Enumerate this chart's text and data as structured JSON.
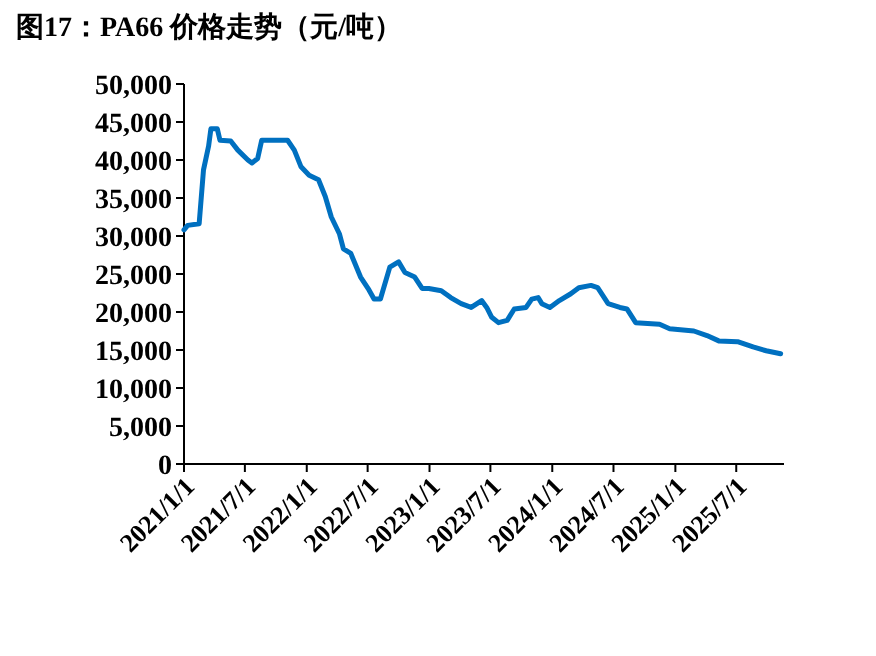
{
  "chart_data": {
    "type": "line",
    "title": "图17：PA66 价格走势（元/吨）",
    "series": [
      {
        "color": "#0070c0",
        "x": [
          "2021-01-01",
          "2021-01-12",
          "2021-02-15",
          "2021-02-28",
          "2021-03-15",
          "2021-03-22",
          "2021-04-10",
          "2021-04-18",
          "2021-05-20",
          "2021-06-10",
          "2021-07-10",
          "2021-07-22",
          "2021-08-08",
          "2021-08-20",
          "2021-11-05",
          "2021-11-25",
          "2021-12-15",
          "2022-01-08",
          "2022-02-05",
          "2022-02-25",
          "2022-03-15",
          "2022-04-08",
          "2022-04-20",
          "2022-05-12",
          "2022-06-10",
          "2022-07-05",
          "2022-07-20",
          "2022-08-08",
          "2022-09-05",
          "2022-10-01",
          "2022-10-20",
          "2022-11-18",
          "2022-12-10",
          "2022-12-30",
          "2023-02-05",
          "2023-03-05",
          "2023-04-05",
          "2023-05-05",
          "2023-06-05",
          "2023-06-20",
          "2023-07-05",
          "2023-07-25",
          "2023-08-20",
          "2023-09-10",
          "2023-10-15",
          "2023-11-01",
          "2023-11-20",
          "2023-12-01",
          "2023-12-25",
          "2024-01-22",
          "2024-02-25",
          "2024-03-20",
          "2024-04-25",
          "2024-05-15",
          "2024-06-15",
          "2024-07-20",
          "2024-08-10",
          "2024-09-05",
          "2024-11-15",
          "2024-12-15",
          "2025-02-25",
          "2025-04-05",
          "2025-05-10",
          "2025-07-05",
          "2025-08-20",
          "2025-09-28",
          "2025-11-10"
        ],
        "values": [
          30800,
          31400,
          31600,
          38700,
          41800,
          44100,
          44100,
          42600,
          42500,
          41300,
          40000,
          39600,
          40200,
          42600,
          42600,
          41300,
          39100,
          38000,
          37400,
          35200,
          32500,
          30300,
          28300,
          27700,
          24600,
          22900,
          21700,
          21700,
          25900,
          26600,
          25200,
          24600,
          23100,
          23100,
          22800,
          21900,
          21100,
          20600,
          21500,
          20600,
          19300,
          18600,
          18900,
          20400,
          20600,
          21700,
          21900,
          21100,
          20600,
          21500,
          22400,
          23200,
          23500,
          23200,
          21100,
          20600,
          20400,
          18600,
          18400,
          17800,
          17500,
          16900,
          16200,
          16100,
          15400,
          14900,
          14500
        ]
      }
    ],
    "xlim": [
      "2021-01-01",
      "2025-11-20"
    ],
    "xticks": [
      {
        "value": "2021-01-01",
        "label": "2021/1/1"
      },
      {
        "value": "2021-07-01",
        "label": "2021/7/1"
      },
      {
        "value": "2022-01-01",
        "label": "2022/1/1"
      },
      {
        "value": "2022-07-01",
        "label": "2022/7/1"
      },
      {
        "value": "2023-01-01",
        "label": "2023/1/1"
      },
      {
        "value": "2023-07-01",
        "label": "2023/7/1"
      },
      {
        "value": "2024-01-01",
        "label": "2024/1/1"
      },
      {
        "value": "2024-07-01",
        "label": "2024/7/1"
      },
      {
        "value": "2025-01-01",
        "label": "2025/1/1"
      },
      {
        "value": "2025-07-01",
        "label": "2025/7/1"
      }
    ],
    "ylim": [
      0,
      50000
    ],
    "yticks": [
      {
        "value": 0,
        "label": "0"
      },
      {
        "value": 5000,
        "label": "5,000"
      },
      {
        "value": 10000,
        "label": "10,000"
      },
      {
        "value": 15000,
        "label": "15,000"
      },
      {
        "value": 20000,
        "label": "20,000"
      },
      {
        "value": 25000,
        "label": "25,000"
      },
      {
        "value": 30000,
        "label": "30,000"
      },
      {
        "value": 35000,
        "label": "35,000"
      },
      {
        "value": 40000,
        "label": "40,000"
      },
      {
        "value": 45000,
        "label": "45,000"
      },
      {
        "value": 50000,
        "label": "50,000"
      }
    ]
  }
}
